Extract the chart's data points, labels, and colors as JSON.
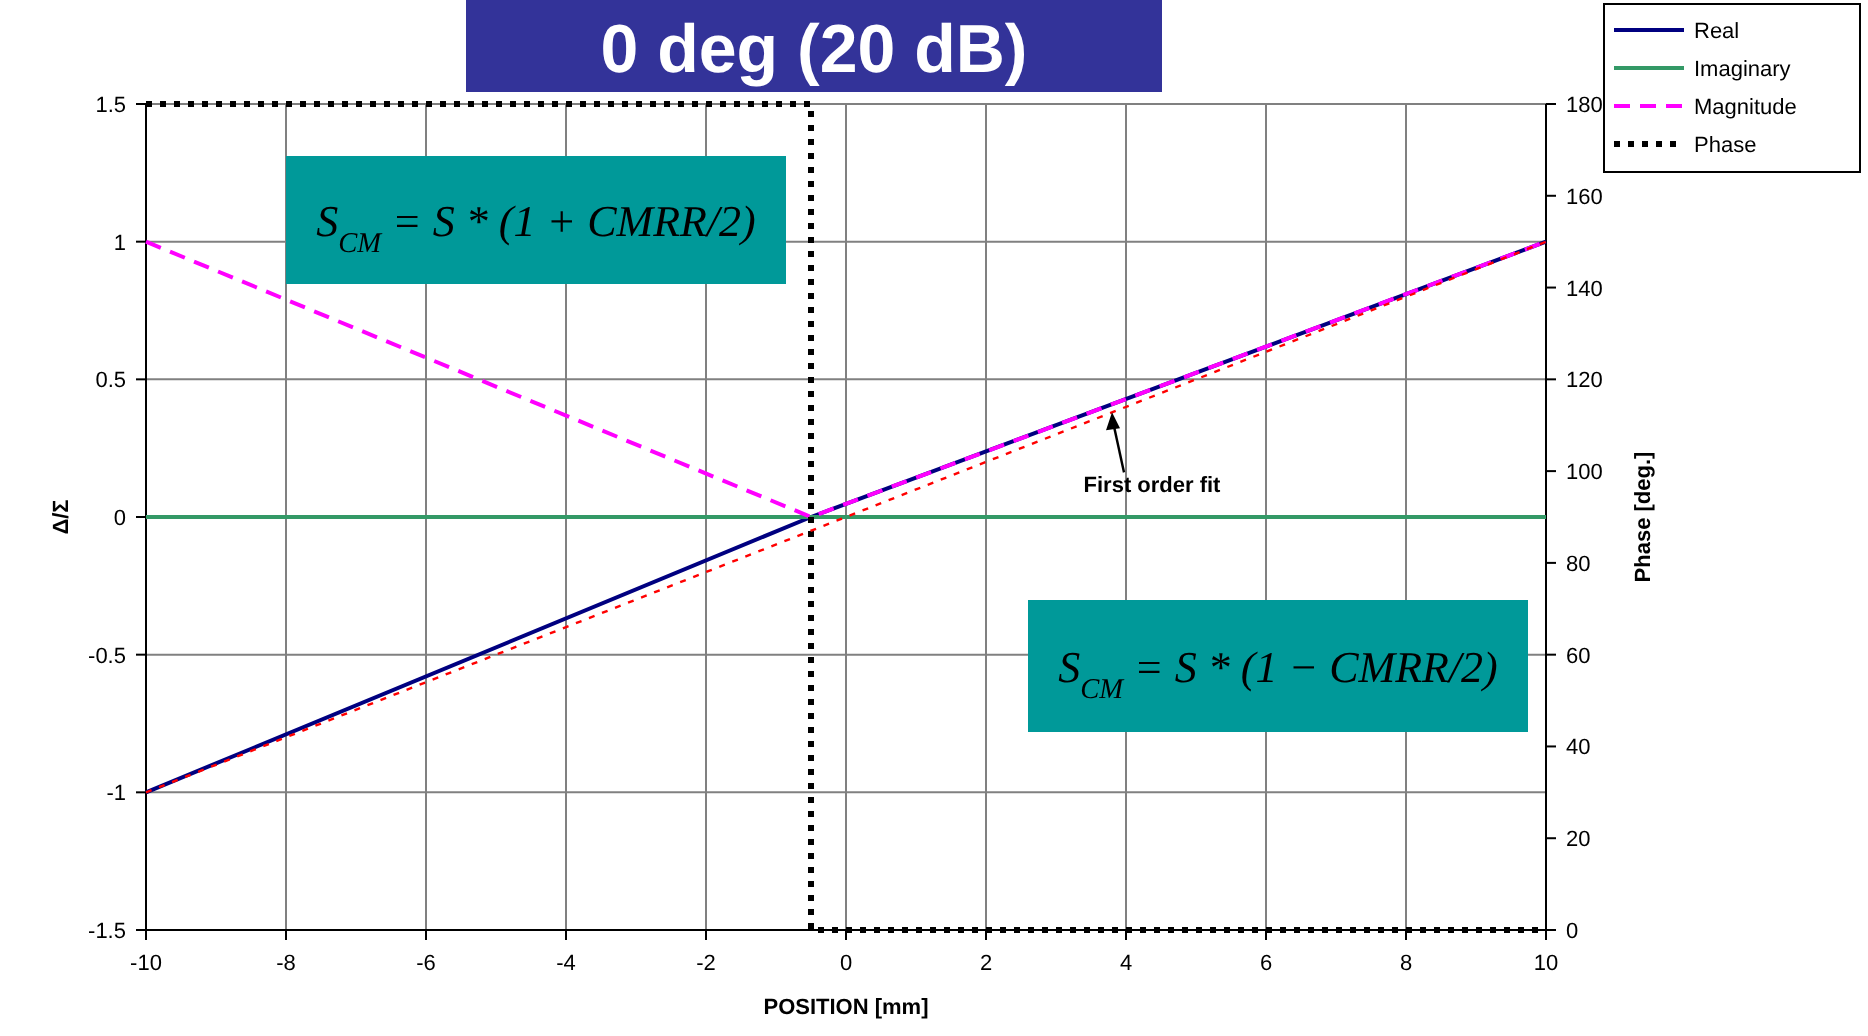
{
  "chart_data": {
    "type": "line",
    "title": "0 deg (20 dB)",
    "xlabel": "POSITION [mm]",
    "ylabel": "Δ/Σ",
    "y2label": "Phase [deg.]",
    "xlim": [
      -10,
      10
    ],
    "xticks": [
      -10,
      -8,
      -6,
      -4,
      -2,
      0,
      2,
      4,
      6,
      8,
      10
    ],
    "ylim": [
      -1.5,
      1.5
    ],
    "yticks": [
      -1.5,
      -1,
      -0.5,
      0,
      0.5,
      1,
      1.5
    ],
    "y2lim": [
      0,
      180
    ],
    "y2ticks": [
      0,
      20,
      40,
      60,
      80,
      100,
      120,
      140,
      160,
      180
    ],
    "grid": true,
    "legend": "top right",
    "marker": "none",
    "series": [
      {
        "name": "Real",
        "color": "#000080",
        "line_style": "solid",
        "x": [
          -10,
          -0.5,
          10
        ],
        "values": [
          -1,
          0,
          1
        ]
      },
      {
        "name": "Imaginary",
        "color": "#339966",
        "line_style": "solid",
        "x": [
          -10,
          10
        ],
        "values": [
          0,
          0
        ]
      },
      {
        "name": "Magnitude",
        "color": "#ff00ff",
        "line_style": "dashed",
        "x": [
          -10,
          -0.5,
          10
        ],
        "values": [
          1,
          0,
          1
        ]
      },
      {
        "name": "Phase",
        "color": "#000000",
        "line_style": "dotted",
        "axis": "y2",
        "x": [
          -10,
          -0.5,
          -0.5,
          10
        ],
        "values": [
          180,
          180,
          0,
          0
        ]
      },
      {
        "color": "#ff0000",
        "line_style": "dotted",
        "x": [
          -10,
          10
        ],
        "values": [
          -1,
          1
        ]
      }
    ],
    "annotations": [
      {
        "text": "First order fit",
        "x": 3.8,
        "y": 0.38
      },
      "S$_{CM}$ = S * (1 + CMRR/2)",
      "S$_{CM}$ = S * (1 − CMRR/2)"
    ]
  }
}
